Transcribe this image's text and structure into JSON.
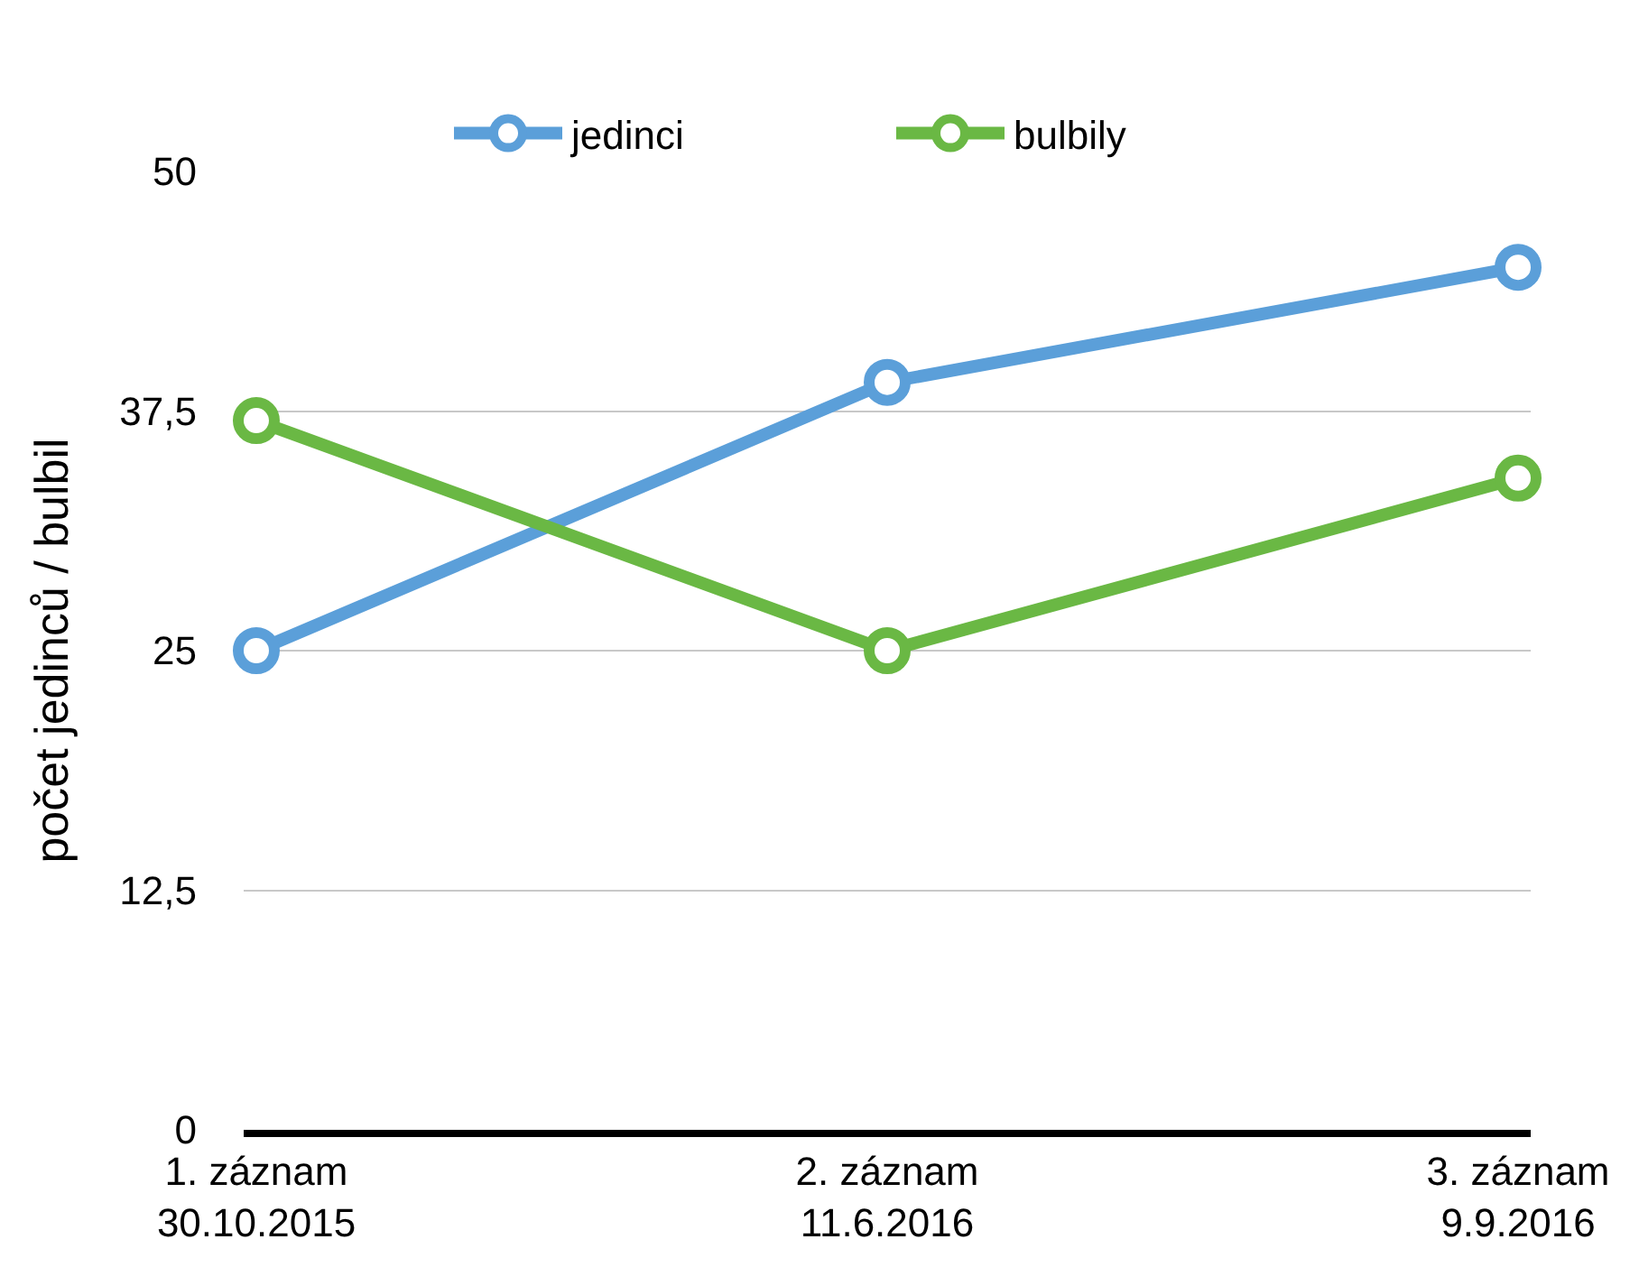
{
  "chart_data": {
    "type": "line",
    "ylabel": "počet jedinců / bulbil",
    "categories": [
      "1. záznam\n30.10.2015",
      "2. záznam\n11.6.2016",
      "3. záznam\n9.9.2016"
    ],
    "series": [
      {
        "name": "jedinci",
        "color": "#5b9fd9",
        "values": [
          25,
          39,
          45
        ]
      },
      {
        "name": "bulbily",
        "color": "#6ab844",
        "values": [
          37,
          25,
          34
        ]
      }
    ],
    "ylim": [
      0,
      50
    ],
    "yticks": [
      0,
      {
        "value": 12.5,
        "label": "12,5"
      },
      25,
      {
        "value": 37.5,
        "label": "37,5"
      },
      50
    ],
    "grid": "y",
    "legend": "top",
    "marker": "circle",
    "line_style": "solid"
  }
}
